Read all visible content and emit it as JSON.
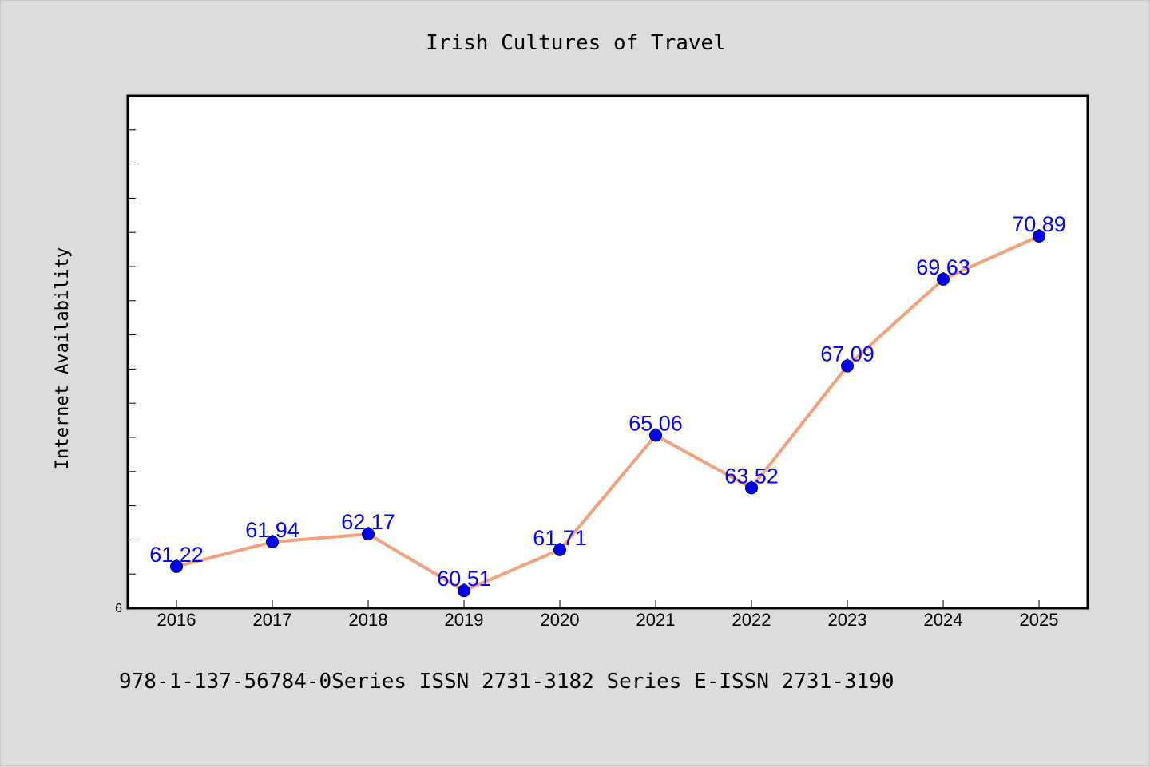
{
  "chart_data": {
    "type": "line",
    "title": "Irish Cultures of Travel",
    "xlabel": "",
    "ylabel": "Internet Availability",
    "categories": [
      "2016",
      "2017",
      "2018",
      "2019",
      "2020",
      "2021",
      "2022",
      "2023",
      "2024",
      "2025"
    ],
    "series": [
      {
        "values": [
          61.22,
          61.94,
          62.17,
          60.51,
          61.71,
          65.06,
          63.52,
          67.09,
          69.63,
          70.89
        ],
        "labels": [
          "61.22",
          "61.94",
          "62.17",
          "60.51",
          "61.71",
          "65.06",
          "63.52",
          "67.09",
          "69.63",
          "70.89"
        ]
      }
    ],
    "ytick_label": "6",
    "ylim": [
      60,
      75
    ],
    "line_color": "#f4a07a",
    "marker_color": "#0000ff",
    "label_color": "#0000ff",
    "grid": false,
    "legend": "none"
  },
  "footer": {
    "text": "978-1-137-56784-0Series ISSN 2731-3182 Series E-ISSN 2731-3190"
  }
}
